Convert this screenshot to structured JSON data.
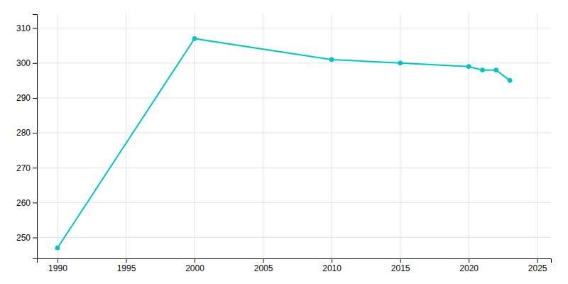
{
  "chart_data": {
    "type": "line",
    "x": [
      1990,
      2000,
      2010,
      2015,
      2020,
      2021,
      2022,
      2023
    ],
    "values": [
      247,
      307,
      301,
      300,
      299,
      298,
      298,
      295
    ],
    "color": "#00C5C8",
    "marker": "circle",
    "xlim": [
      1988.5,
      2026
    ],
    "ylim": [
      244,
      314
    ],
    "xticks": [
      1990,
      1995,
      2000,
      2005,
      2010,
      2015,
      2020,
      2025
    ],
    "yticks": [
      250,
      260,
      270,
      280,
      290,
      300,
      310
    ],
    "grid": true
  }
}
